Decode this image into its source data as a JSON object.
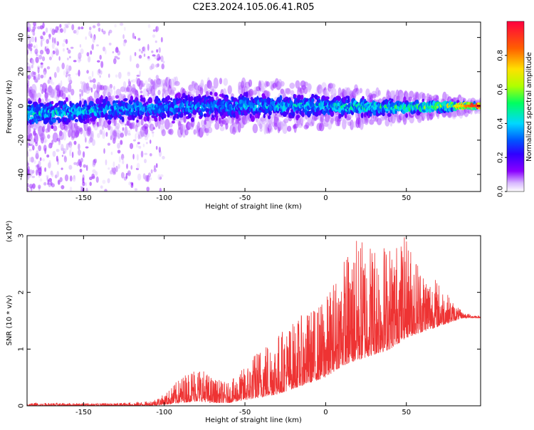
{
  "title": "C2E3.2024.105.06.41.R05",
  "chart_data": [
    {
      "type": "heatmap",
      "name": "spectrogram",
      "xlabel": "Height of straight line (km)",
      "ylabel": "Frequency (Hz)",
      "xlim": [
        -185,
        96
      ],
      "ylim": [
        -50,
        49
      ],
      "xticks": [
        -150,
        -100,
        -50,
        0,
        50
      ],
      "yticks": [
        -40,
        -20,
        0,
        20,
        40
      ],
      "colorbar": {
        "label": "Normalized spectral amplitude",
        "range": [
          0.0,
          1.0
        ],
        "ticks": [
          "0.0",
          "0.2",
          "0.4",
          "0.6",
          "0.8"
        ],
        "colormap": [
          "#ffffff",
          "#d8b8ff",
          "#8a00ff",
          "#3000ff",
          "#0055ff",
          "#00d8ff",
          "#00ff60",
          "#b0ff00",
          "#ffe000",
          "#ff6000",
          "#ff0040"
        ]
      },
      "description_profile": [
        {
          "x": -185,
          "center": -5,
          "halfwidth": 10,
          "peak": 0.45
        },
        {
          "x": -150,
          "center": -3,
          "halfwidth": 9,
          "peak": 0.4
        },
        {
          "x": -100,
          "center": -1,
          "halfwidth": 10,
          "peak": 0.35
        },
        {
          "x": -50,
          "center": 0,
          "halfwidth": 9,
          "peak": 0.38
        },
        {
          "x": 0,
          "center": 0,
          "halfwidth": 8,
          "peak": 0.45
        },
        {
          "x": 50,
          "center": -1,
          "halfwidth": 5,
          "peak": 0.5
        },
        {
          "x": 80,
          "center": 0,
          "halfwidth": 3,
          "peak": 0.7
        },
        {
          "x": 94,
          "center": 0,
          "halfwidth": 1.5,
          "peak": 1.0
        }
      ]
    },
    {
      "type": "line",
      "name": "snr",
      "xlabel": "Height of straight line (km)",
      "ylabel": "SNR (10 * v/v)",
      "y_multiplier": "(x10⁴)",
      "xlim": [
        -185,
        96
      ],
      "ylim": [
        0,
        3
      ],
      "xticks": [
        -150,
        -100,
        -50,
        0,
        50
      ],
      "yticks": [
        0,
        1,
        2,
        3
      ],
      "color": "#ee3333",
      "envelope": {
        "x": [
          -185,
          -130,
          -110,
          -100,
          -90,
          -80,
          -70,
          -60,
          -50,
          -40,
          -30,
          -20,
          -10,
          0,
          10,
          20,
          30,
          40,
          50,
          60,
          70,
          80,
          85,
          96
        ],
        "y_low": [
          0.0,
          0.0,
          0.0,
          0.02,
          0.05,
          0.08,
          0.05,
          0.05,
          0.1,
          0.15,
          0.2,
          0.3,
          0.4,
          0.5,
          0.7,
          0.8,
          0.9,
          1.0,
          1.2,
          1.3,
          1.4,
          1.5,
          1.55,
          1.55
        ],
        "y_high": [
          0.05,
          0.05,
          0.08,
          0.2,
          0.5,
          0.75,
          0.5,
          0.4,
          0.7,
          1.1,
          1.3,
          1.5,
          1.7,
          1.9,
          2.6,
          3.0,
          3.0,
          2.9,
          3.0,
          2.5,
          2.2,
          1.8,
          1.65,
          1.58
        ]
      }
    }
  ]
}
